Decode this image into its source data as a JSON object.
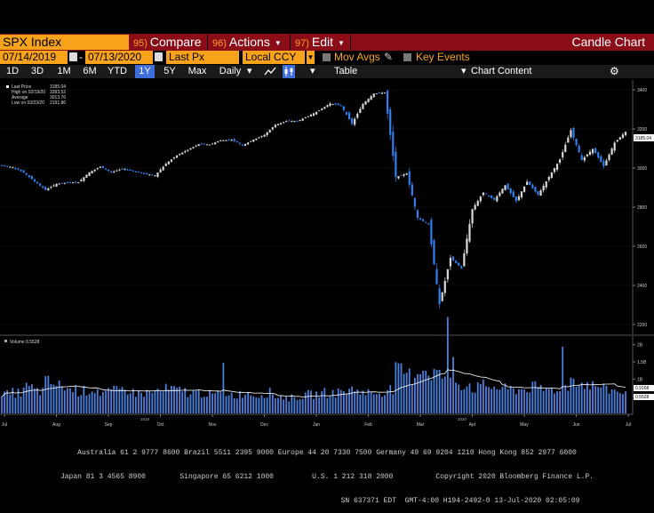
{
  "toolbar": {
    "ticker": "SPX Index",
    "compare": {
      "num": "95)",
      "label": "Compare"
    },
    "actions": {
      "num": "96)",
      "label": "Actions"
    },
    "edit": {
      "num": "97)",
      "label": "Edit"
    },
    "title": "Candle Chart"
  },
  "settings": {
    "start_date": "07/14/2019",
    "end_date": "07/13/2020",
    "field": "Last Px",
    "currency": "Local CCY",
    "mov_avgs": "Mov Avgs",
    "key_events": "Key Events"
  },
  "ranges": {
    "items": [
      "1D",
      "3D",
      "1M",
      "6M",
      "YTD",
      "1Y",
      "5Y",
      "Max"
    ],
    "active": "1Y",
    "frequency": "Daily",
    "table": "Table",
    "chart_content": "Chart Content"
  },
  "legend": {
    "last_price": {
      "label": "Last Price",
      "value": "3185.04"
    },
    "high": {
      "label": "High on 02/19/20",
      "value": "3393.52"
    },
    "average": {
      "label": "Average",
      "value": "3013.76"
    },
    "low": {
      "label": "Low on 03/23/20",
      "value": "2191.86"
    }
  },
  "price_tag": "3185.04",
  "volume_label": "Volume  0.5528",
  "volume_tags": {
    "high": "0.9168",
    "low": "0.5528"
  },
  "colors": {
    "up": "#d9d9d9",
    "down": "#2f80ee",
    "accent": "#f7a21b",
    "title_bar": "#8b0d18",
    "avg_line": "#ffffff"
  },
  "footer": {
    "line1": "Australia 61 2 9777 8600 Brazil 5511 2395 9000 Europe 44 20 7330 7500 Germany 49 69 9204 1210 Hong Kong 852 2977 6000",
    "line2": "Japan 81 3 4565 8900        Singapore 65 6212 1000         U.S. 1 212 318 2000          Copyright 2020 Bloomberg Finance L.P.",
    "line3": "SN 637371 EDT  GMT-4:00 H194-2492-0 13-Jul-2020 02:05:09"
  },
  "chart_data": {
    "type": "candlestick",
    "price_axis": {
      "ticks": [
        2200,
        2400,
        2600,
        2800,
        3000,
        3200,
        3400
      ],
      "range": [
        2150,
        3450
      ]
    },
    "volume_axis": {
      "ticks": [
        "2B",
        "1.5B",
        "1B",
        "500M"
      ]
    },
    "x_tick_labels": [
      "Jul",
      "Aug",
      "Sep",
      "Oct",
      "Nov",
      "Dec",
      "Jan",
      "Feb",
      "Mar",
      "Apr",
      "May",
      "Jun",
      "Jul"
    ],
    "x_year_labels": [
      "2019",
      "2020"
    ],
    "weekly_close": [
      3014,
      3004,
      2977,
      2932,
      2888,
      2919,
      2926,
      2927,
      2978,
      3007,
      2978,
      2997,
      2986,
      2970,
      2962,
      3022,
      3065,
      3093,
      3122,
      3120,
      3141,
      3145,
      3116,
      3145,
      3169,
      3221,
      3240,
      3240,
      3265,
      3295,
      3330,
      3320,
      3226,
      3328,
      3380,
      3386,
      2954,
      2972,
      2746,
      2711,
      2305,
      2541,
      2488,
      2790,
      2875,
      2837,
      2912,
      2831,
      2930,
      2863,
      2955,
      3044,
      3194,
      3041,
      3098,
      3009,
      3130,
      3185
    ],
    "weekly_volume": [
      0.55,
      0.6,
      0.75,
      0.65,
      0.9,
      0.8,
      0.7,
      0.65,
      0.7,
      0.6,
      0.65,
      0.7,
      0.6,
      0.6,
      0.65,
      0.7,
      0.65,
      0.6,
      0.6,
      0.55,
      0.6,
      0.55,
      0.6,
      0.55,
      0.6,
      0.5,
      0.45,
      0.5,
      0.55,
      0.6,
      0.6,
      0.65,
      0.7,
      0.6,
      0.6,
      0.7,
      1.2,
      1.1,
      1.3,
      1.2,
      1.1,
      0.9,
      0.85,
      0.75,
      0.8,
      0.75,
      0.7,
      0.7,
      0.75,
      0.7,
      0.7,
      0.8,
      1.0,
      0.85,
      0.8,
      0.7,
      0.65,
      0.6
    ]
  }
}
